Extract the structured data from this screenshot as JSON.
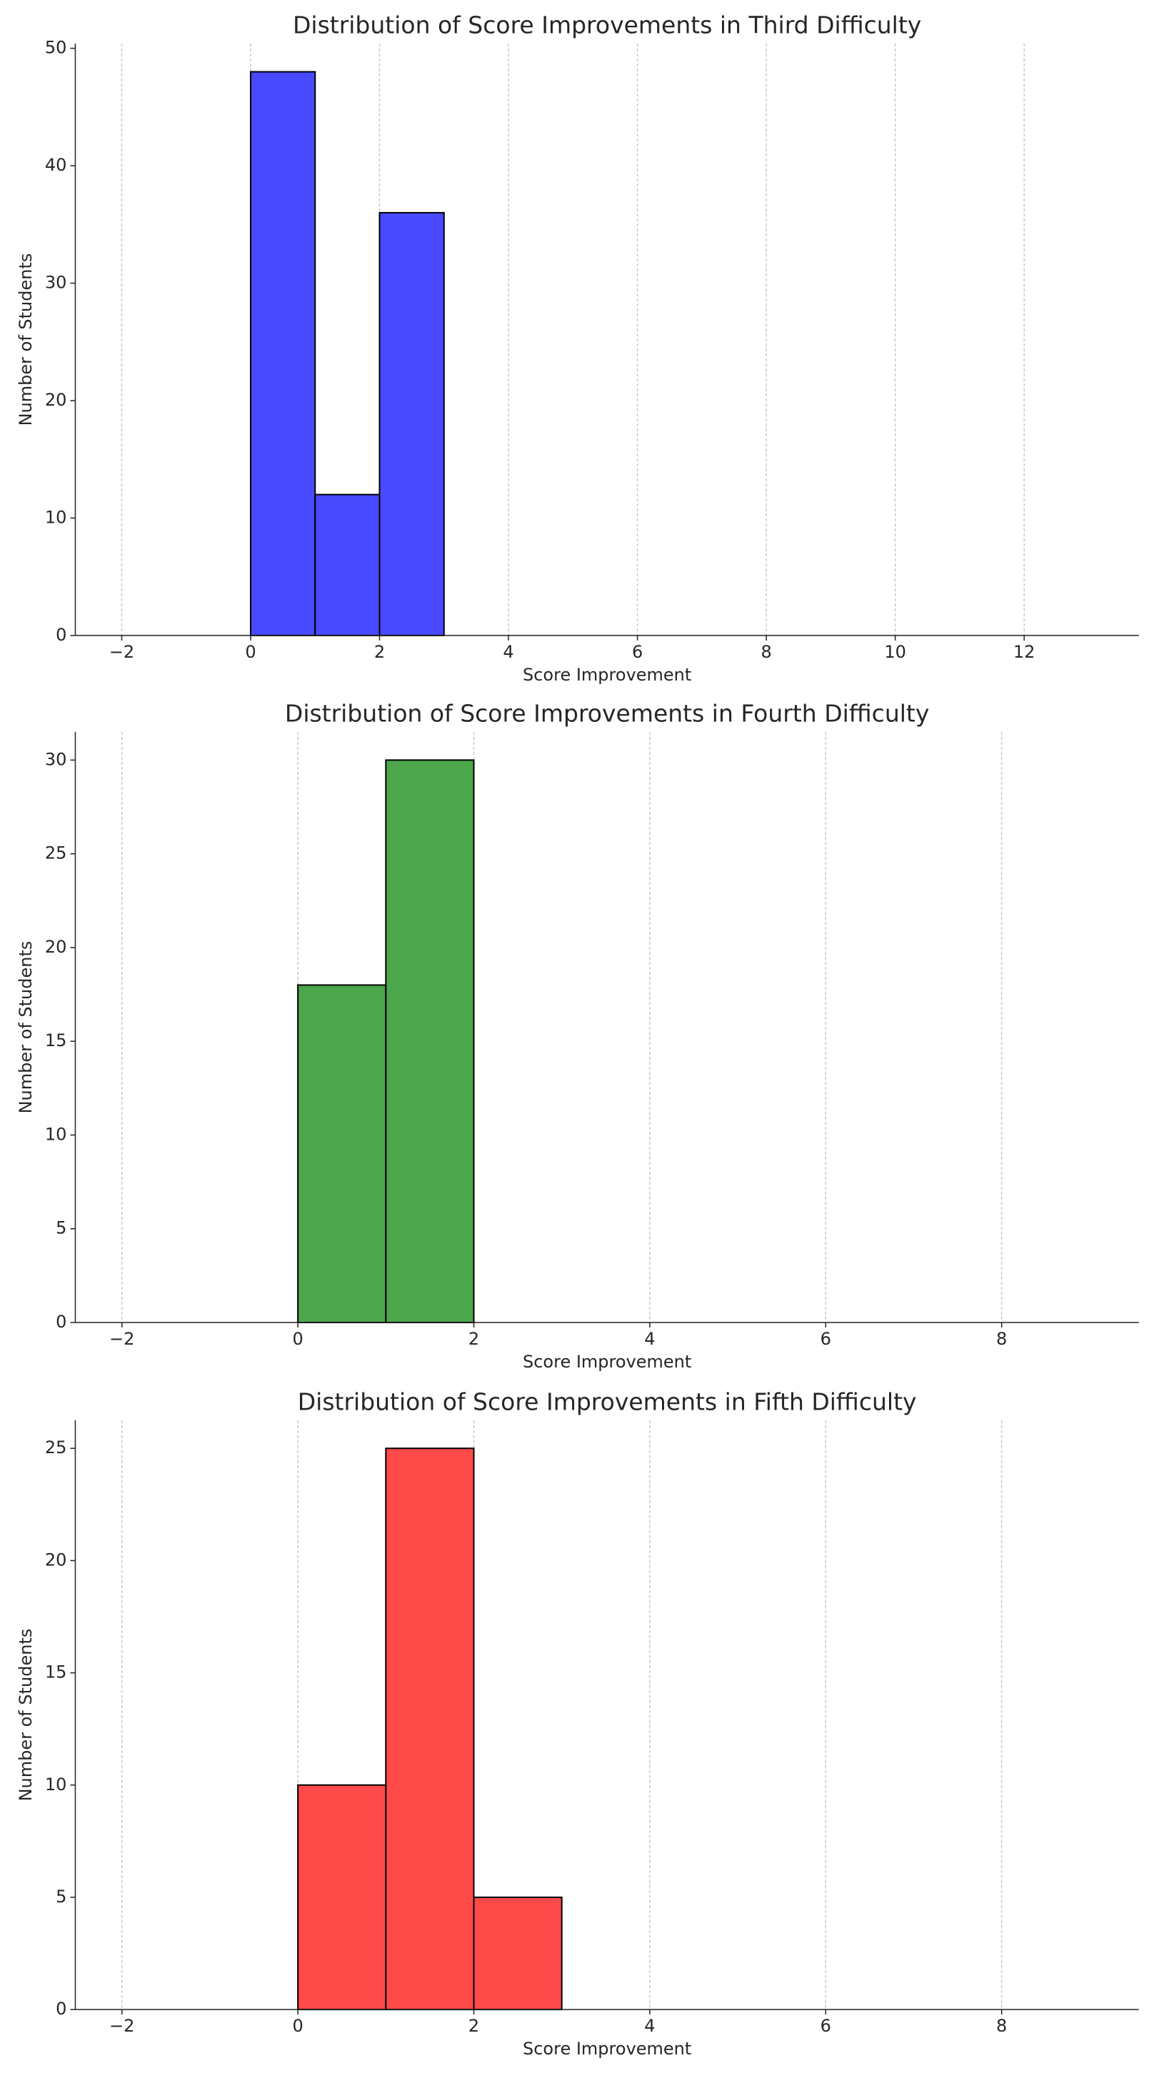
{
  "chart_data": [
    {
      "type": "histogram",
      "title": "Distribution of Score Improvements in Third Difficulty",
      "x_label": "Score Improvement",
      "y_label": "Number of Students",
      "bins": [
        0,
        1,
        2,
        3
      ],
      "values": [
        48,
        12,
        36
      ],
      "color": "#4949ff",
      "xlim": [
        -2.72,
        13.78
      ],
      "ylim": [
        0,
        50.4
      ],
      "xticks": [
        {
          "value": -2,
          "label": "−2"
        },
        0,
        2,
        4,
        6,
        8,
        10,
        12
      ],
      "yticks": [
        0,
        10,
        20,
        30,
        40,
        50
      ],
      "grid": "x"
    },
    {
      "type": "histogram",
      "title": "Distribution of Score Improvements in Fourth Difficulty",
      "x_label": "Score Improvement",
      "y_label": "Number of Students",
      "bins": [
        0,
        1,
        2
      ],
      "values": [
        18,
        30
      ],
      "color": "#4ca64c",
      "xlim": [
        -2.53,
        9.56
      ],
      "ylim": [
        0,
        31.5
      ],
      "xticks": [
        {
          "value": -2,
          "label": "−2"
        },
        0,
        2,
        4,
        6,
        8
      ],
      "yticks": [
        0,
        5,
        10,
        15,
        20,
        25,
        30
      ],
      "grid": "x"
    },
    {
      "type": "histogram",
      "title": "Distribution of Score Improvements in Fifth Difficulty",
      "x_label": "Score Improvement",
      "y_label": "Number of Students",
      "bins": [
        0,
        1,
        2,
        3
      ],
      "values": [
        10,
        25,
        5
      ],
      "color": "#ff4a4a",
      "xlim": [
        -2.53,
        9.56
      ],
      "ylim": [
        0,
        26.25
      ],
      "xticks": [
        {
          "value": -2,
          "label": "−2"
        },
        0,
        2,
        4,
        6,
        8
      ],
      "yticks": [
        0,
        5,
        10,
        15,
        20,
        25
      ],
      "grid": "x"
    }
  ]
}
